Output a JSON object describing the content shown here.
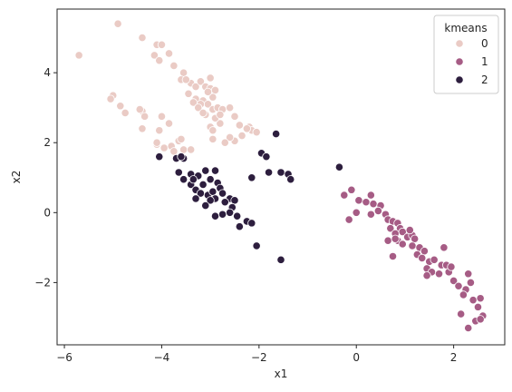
{
  "chart_data": {
    "type": "scatter",
    "title": "",
    "xlabel": "x1",
    "ylabel": "x2",
    "xlim": [
      -6.15,
      3.05
    ],
    "ylim": [
      -3.78,
      5.82
    ],
    "xticks": [
      -6,
      -4,
      -2,
      0,
      2
    ],
    "yticks": [
      -2,
      0,
      2,
      4
    ],
    "xtick_labels": [
      "−6",
      "−4",
      "−2",
      "0",
      "2"
    ],
    "ytick_labels": [
      "−2",
      "0",
      "2",
      "4"
    ],
    "grid": false,
    "legend": {
      "title": "kmeans",
      "position": "top-right",
      "entries": [
        "0",
        "1",
        "2"
      ]
    },
    "series": [
      {
        "name": "0",
        "color": "#eacbc5",
        "points": [
          [
            -4.9,
            5.4
          ],
          [
            -4.4,
            5.0
          ],
          [
            -5.7,
            4.5
          ],
          [
            -4.1,
            4.8
          ],
          [
            -4.0,
            4.8
          ],
          [
            -4.15,
            4.5
          ],
          [
            -4.05,
            4.35
          ],
          [
            -3.85,
            4.55
          ],
          [
            -3.75,
            4.2
          ],
          [
            -3.55,
            4.0
          ],
          [
            -3.6,
            3.8
          ],
          [
            -3.4,
            3.7
          ],
          [
            -3.3,
            3.6
          ],
          [
            -3.2,
            3.75
          ],
          [
            -3.1,
            3.6
          ],
          [
            -3.0,
            3.55
          ],
          [
            -2.9,
            3.5
          ],
          [
            -2.95,
            3.3
          ],
          [
            -3.5,
            3.8
          ],
          [
            -3.45,
            3.4
          ],
          [
            -3.3,
            3.25
          ],
          [
            -3.15,
            3.2
          ],
          [
            -3.05,
            3.1
          ],
          [
            -2.95,
            2.95
          ],
          [
            -2.85,
            3.0
          ],
          [
            -2.75,
            2.95
          ],
          [
            -2.6,
            3.0
          ],
          [
            -2.5,
            2.75
          ],
          [
            -2.4,
            2.5
          ],
          [
            -2.2,
            2.45
          ],
          [
            -2.15,
            2.35
          ],
          [
            -2.05,
            2.3
          ],
          [
            -2.35,
            2.2
          ],
          [
            -2.5,
            2.05
          ],
          [
            -2.6,
            2.15
          ],
          [
            -2.8,
            2.55
          ],
          [
            -2.9,
            2.7
          ],
          [
            -3.0,
            2.45
          ],
          [
            -2.95,
            2.35
          ],
          [
            -3.1,
            2.8
          ],
          [
            -3.2,
            3.1
          ],
          [
            -3.35,
            3.15
          ],
          [
            -3.0,
            3.85
          ],
          [
            -5.0,
            3.35
          ],
          [
            -5.05,
            3.25
          ],
          [
            -4.85,
            3.05
          ],
          [
            -4.75,
            2.85
          ],
          [
            -4.4,
            2.9
          ],
          [
            -4.35,
            2.75
          ],
          [
            -4.4,
            2.4
          ],
          [
            -4.05,
            2.35
          ],
          [
            -4.0,
            2.75
          ],
          [
            -3.85,
            2.55
          ],
          [
            -4.1,
            1.95
          ],
          [
            -3.95,
            1.85
          ],
          [
            -3.8,
            1.9
          ],
          [
            -3.65,
            2.05
          ],
          [
            -3.75,
            1.75
          ],
          [
            -3.55,
            1.8
          ],
          [
            -3.4,
            1.8
          ],
          [
            -2.95,
            2.1
          ],
          [
            -2.7,
            2.0
          ],
          [
            -4.1,
            2.0
          ],
          [
            -3.6,
            2.1
          ],
          [
            -4.45,
            2.95
          ],
          [
            -2.25,
            2.4
          ],
          [
            -3.25,
            3.0
          ],
          [
            -3.15,
            2.85
          ],
          [
            -2.8,
            2.8
          ],
          [
            -3.05,
            3.45
          ]
        ]
      },
      {
        "name": "1",
        "color": "#a65c85",
        "points": [
          [
            0.0,
            0.0
          ],
          [
            -0.1,
            0.65
          ],
          [
            -0.25,
            0.5
          ],
          [
            0.05,
            0.35
          ],
          [
            0.2,
            0.3
          ],
          [
            0.3,
            0.5
          ],
          [
            0.35,
            0.25
          ],
          [
            0.5,
            0.2
          ],
          [
            0.45,
            0.05
          ],
          [
            0.3,
            -0.05
          ],
          [
            -0.15,
            -0.2
          ],
          [
            0.6,
            -0.05
          ],
          [
            0.65,
            -0.2
          ],
          [
            0.75,
            -0.25
          ],
          [
            0.85,
            -0.3
          ],
          [
            0.9,
            -0.45
          ],
          [
            0.95,
            -0.55
          ],
          [
            0.7,
            -0.45
          ],
          [
            0.8,
            -0.6
          ],
          [
            0.65,
            -0.8
          ],
          [
            0.85,
            -0.8
          ],
          [
            0.95,
            -0.9
          ],
          [
            0.8,
            -0.75
          ],
          [
            1.05,
            -0.7
          ],
          [
            1.15,
            -0.65
          ],
          [
            1.2,
            -0.75
          ],
          [
            1.15,
            -0.95
          ],
          [
            1.3,
            -1.0
          ],
          [
            1.25,
            -1.2
          ],
          [
            1.4,
            -1.1
          ],
          [
            1.35,
            -1.3
          ],
          [
            1.5,
            -1.4
          ],
          [
            1.6,
            -1.35
          ],
          [
            1.75,
            -1.5
          ],
          [
            1.45,
            -1.6
          ],
          [
            1.55,
            -1.7
          ],
          [
            1.45,
            -1.8
          ],
          [
            1.85,
            -1.5
          ],
          [
            1.7,
            -1.75
          ],
          [
            1.9,
            -1.7
          ],
          [
            2.0,
            -1.95
          ],
          [
            2.1,
            -2.1
          ],
          [
            2.3,
            -1.75
          ],
          [
            2.35,
            -2.0
          ],
          [
            2.25,
            -2.2
          ],
          [
            2.2,
            -2.35
          ],
          [
            2.4,
            -2.5
          ],
          [
            2.55,
            -2.45
          ],
          [
            2.5,
            -2.7
          ],
          [
            2.6,
            -2.95
          ],
          [
            2.15,
            -2.9
          ],
          [
            2.3,
            -3.3
          ],
          [
            2.45,
            -3.1
          ],
          [
            2.55,
            -3.05
          ],
          [
            0.75,
            -1.25
          ],
          [
            1.1,
            -0.5
          ],
          [
            1.95,
            -1.55
          ],
          [
            1.8,
            -1.0
          ]
        ]
      },
      {
        "name": "2",
        "color": "#2d1e3e",
        "points": [
          [
            -4.05,
            1.6
          ],
          [
            -3.7,
            1.55
          ],
          [
            -3.55,
            1.55
          ],
          [
            -3.65,
            1.15
          ],
          [
            -3.4,
            1.1
          ],
          [
            -3.25,
            1.05
          ],
          [
            -3.1,
            1.2
          ],
          [
            -2.9,
            1.2
          ],
          [
            -3.55,
            0.95
          ],
          [
            -3.0,
            0.95
          ],
          [
            -2.85,
            0.85
          ],
          [
            -3.4,
            0.8
          ],
          [
            -3.3,
            0.65
          ],
          [
            -3.2,
            0.55
          ],
          [
            -3.05,
            0.5
          ],
          [
            -2.95,
            0.6
          ],
          [
            -2.8,
            0.7
          ],
          [
            -2.75,
            0.55
          ],
          [
            -2.6,
            0.4
          ],
          [
            -2.5,
            0.35
          ],
          [
            -3.35,
            0.95
          ],
          [
            -3.15,
            0.8
          ],
          [
            -2.9,
            0.4
          ],
          [
            -2.7,
            0.3
          ],
          [
            -2.55,
            0.15
          ],
          [
            -2.6,
            0.0
          ],
          [
            -2.75,
            -0.05
          ],
          [
            -2.9,
            -0.1
          ],
          [
            -2.45,
            -0.1
          ],
          [
            -2.25,
            -0.25
          ],
          [
            -2.15,
            -0.3
          ],
          [
            -2.4,
            -0.4
          ],
          [
            -2.05,
            -0.95
          ],
          [
            -2.15,
            1.0
          ],
          [
            -1.95,
            1.7
          ],
          [
            -1.85,
            1.6
          ],
          [
            -1.65,
            2.25
          ],
          [
            -1.8,
            1.15
          ],
          [
            -1.55,
            1.15
          ],
          [
            -1.4,
            1.1
          ],
          [
            -1.35,
            0.95
          ],
          [
            -0.35,
            1.3
          ],
          [
            -1.55,
            -1.35
          ],
          [
            -3.0,
            0.35
          ],
          [
            -3.3,
            0.4
          ],
          [
            -3.1,
            0.2
          ],
          [
            -3.6,
            1.6
          ]
        ]
      }
    ]
  }
}
